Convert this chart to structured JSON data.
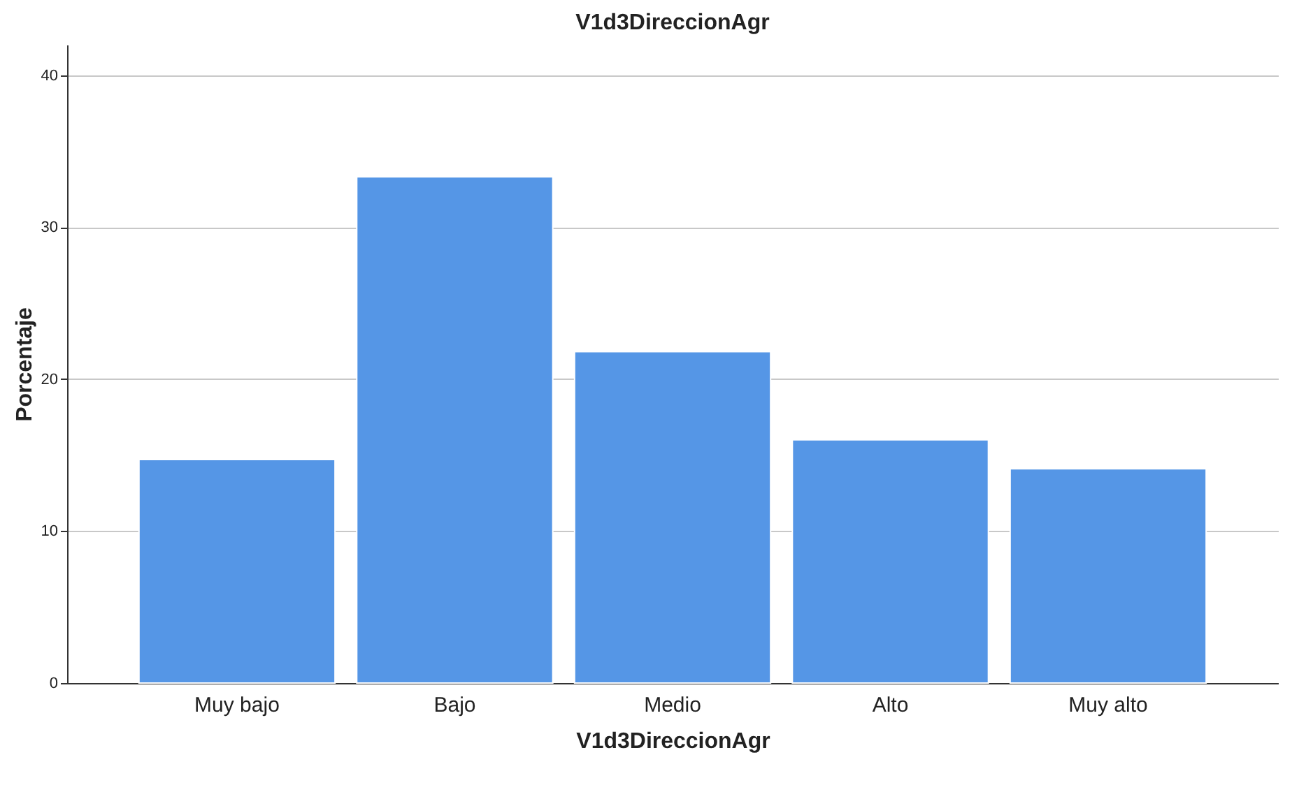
{
  "chart_data": {
    "type": "bar",
    "title": "V1d3DireccionAgr",
    "xlabel": "V1d3DireccionAgr",
    "ylabel": "Porcentaje",
    "categories": [
      "Muy bajo",
      "Bajo",
      "Medio",
      "Alto",
      "Muy alto"
    ],
    "values": [
      14.7,
      33.3,
      21.8,
      16.0,
      14.1
    ],
    "color": "#5596e6",
    "ylim": [
      0,
      42
    ],
    "yticks": [
      0,
      10,
      20,
      30,
      40
    ],
    "grid": "y"
  }
}
